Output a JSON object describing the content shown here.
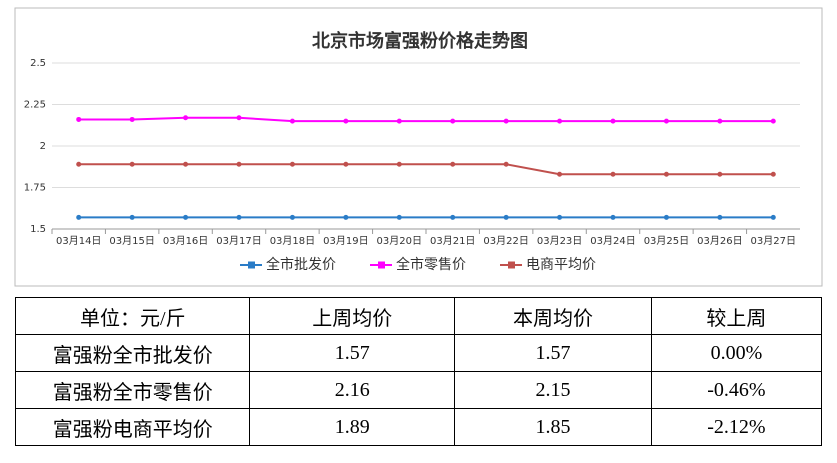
{
  "chart_data": {
    "type": "line",
    "title": "北京市场富强粉价格走势图",
    "categories": [
      "03月14日",
      "03月15日",
      "03月16日",
      "03月17日",
      "03月18日",
      "03月19日",
      "03月20日",
      "03月21日",
      "03月22日",
      "03月23日",
      "03月24日",
      "03月25日",
      "03月26日",
      "03月27日"
    ],
    "series": [
      {
        "name": "全市批发价",
        "color": "#2a7cc7",
        "values": [
          1.57,
          1.57,
          1.57,
          1.57,
          1.57,
          1.57,
          1.57,
          1.57,
          1.57,
          1.57,
          1.57,
          1.57,
          1.57,
          1.57
        ]
      },
      {
        "name": "全市零售价",
        "color": "#ff00ff",
        "values": [
          2.16,
          2.16,
          2.17,
          2.17,
          2.15,
          2.15,
          2.15,
          2.15,
          2.15,
          2.15,
          2.15,
          2.15,
          2.15,
          2.15
        ]
      },
      {
        "name": "电商平均价",
        "color": "#c0504d",
        "values": [
          1.89,
          1.89,
          1.89,
          1.89,
          1.89,
          1.89,
          1.89,
          1.89,
          1.89,
          1.83,
          1.83,
          1.83,
          1.83,
          1.83
        ]
      }
    ],
    "ylim": [
      1.5,
      2.5
    ],
    "yticks": [
      1.5,
      1.75,
      2,
      2.25,
      2.5
    ],
    "grid": true,
    "legend": "bottom"
  },
  "table": {
    "header": [
      "单位：元/斤",
      "上周均价",
      "本周均价",
      "较上周"
    ],
    "rows": [
      [
        "富强粉全市批发价",
        "1.57",
        "1.57",
        "0.00%"
      ],
      [
        "富强粉全市零售价",
        "2.16",
        "2.15",
        "-0.46%"
      ],
      [
        "富强粉电商平均价",
        "1.89",
        "1.85",
        "-2.12%"
      ]
    ]
  }
}
